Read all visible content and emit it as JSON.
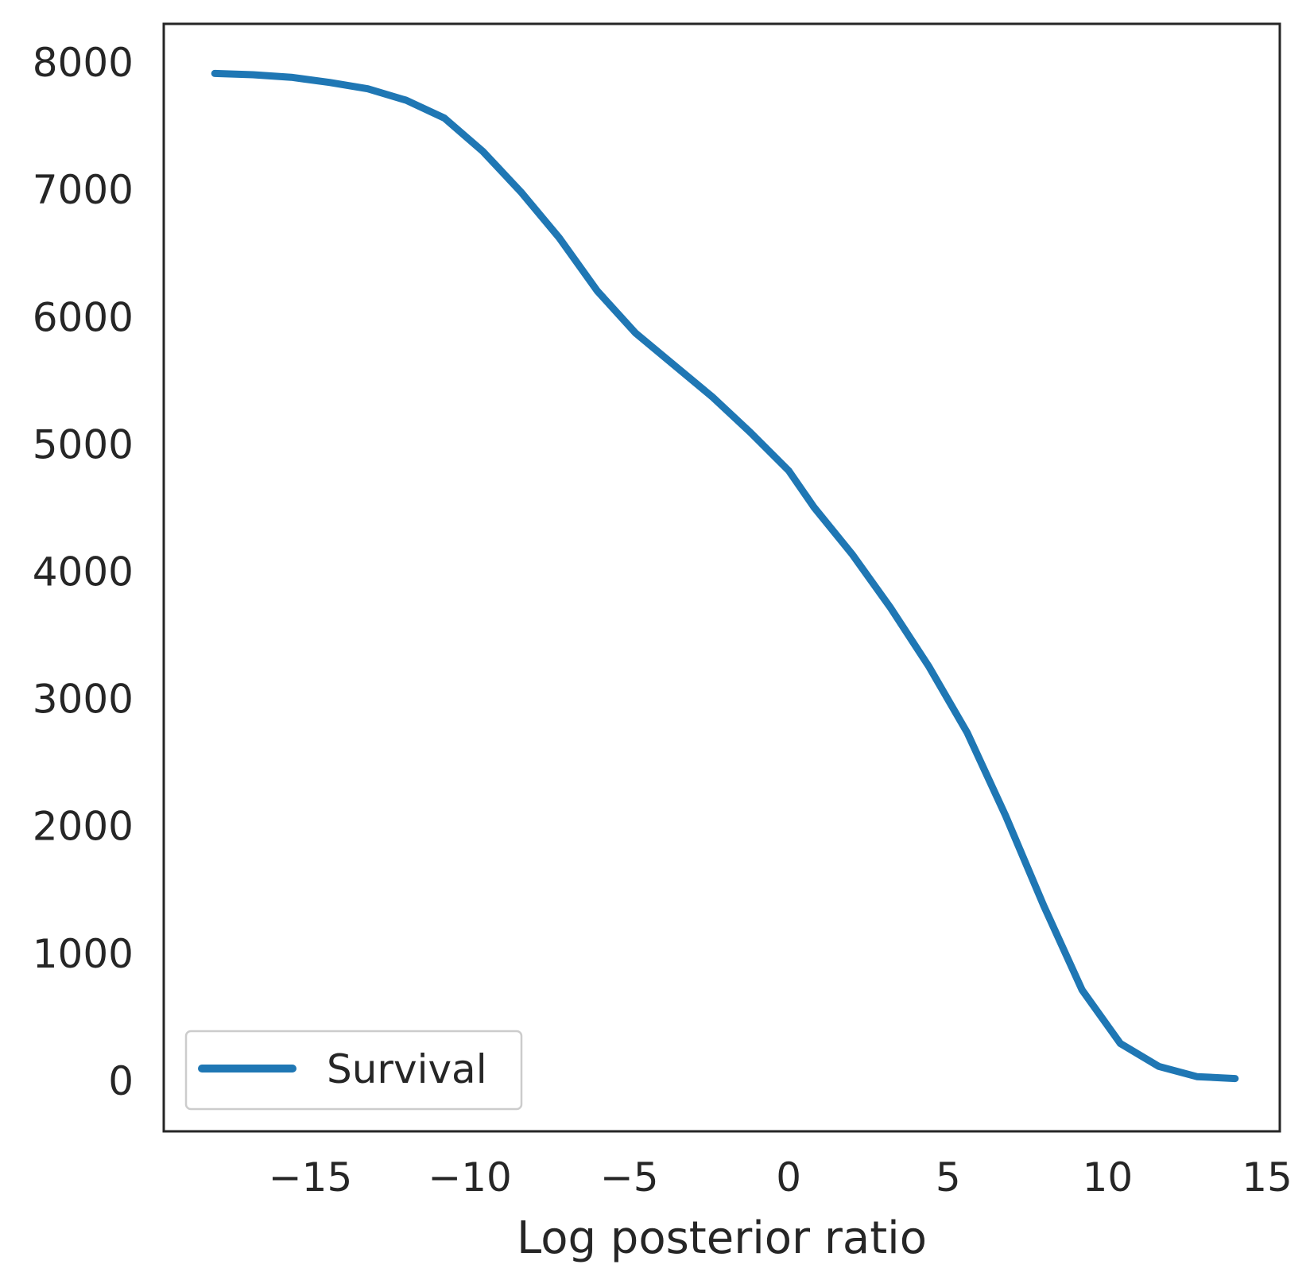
{
  "chart_data": {
    "type": "line",
    "title": "",
    "xlabel": "Log posterior ratio",
    "ylabel": "",
    "xlim": [
      -19.6,
      15.4
    ],
    "ylim": [
      -400,
      8300
    ],
    "xticks": [
      -15,
      -10,
      -5,
      0,
      5,
      10,
      15
    ],
    "xtick_labels": [
      "−15",
      "−10",
      "−5",
      "0",
      "5",
      "10",
      "15"
    ],
    "yticks": [
      0,
      1000,
      2000,
      3000,
      4000,
      5000,
      6000,
      7000,
      8000
    ],
    "ytick_labels": [
      "0",
      "1000",
      "2000",
      "3000",
      "4000",
      "5000",
      "6000",
      "7000",
      "8000"
    ],
    "grid": false,
    "legend_position": "lower-left",
    "series": [
      {
        "name": "Survival",
        "color": "#1f77b4",
        "x": [
          -18.0,
          -16.8,
          -15.6,
          -14.4,
          -13.2,
          -12.0,
          -10.8,
          -9.6,
          -8.4,
          -7.2,
          -6.0,
          -4.8,
          -3.6,
          -2.4,
          -1.2,
          0.0,
          0.8,
          2.0,
          3.2,
          4.4,
          5.6,
          6.8,
          8.0,
          9.2,
          10.4,
          11.6,
          12.8,
          14.0
        ],
        "y": [
          7910,
          7900,
          7880,
          7840,
          7790,
          7700,
          7560,
          7300,
          6980,
          6620,
          6200,
          5870,
          5620,
          5370,
          5090,
          4790,
          4500,
          4130,
          3710,
          3250,
          2730,
          2080,
          1370,
          710,
          290,
          110,
          30,
          15
        ]
      }
    ]
  }
}
